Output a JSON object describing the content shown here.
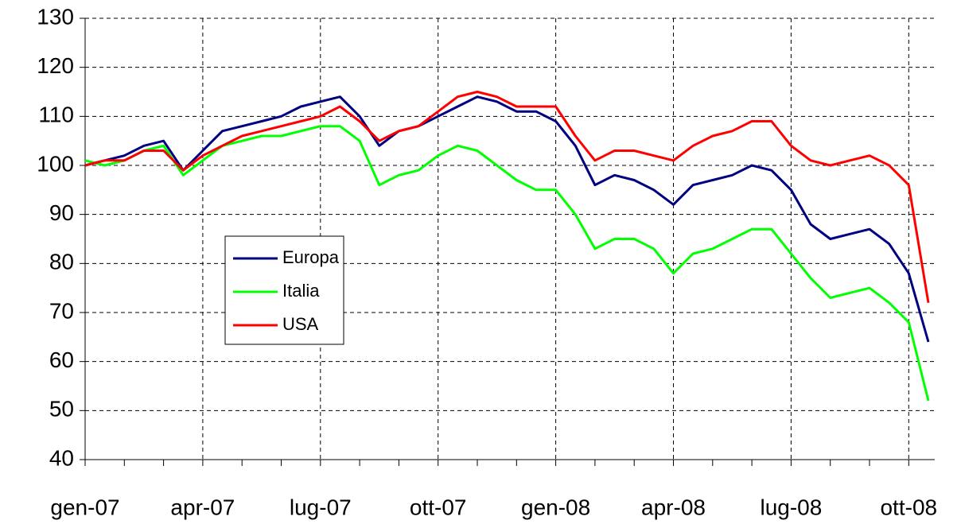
{
  "chart_data": {
    "type": "line",
    "categories": [
      "gen-07",
      null,
      null,
      null,
      null,
      null,
      "apr-07",
      null,
      null,
      null,
      null,
      null,
      "lug-07",
      null,
      null,
      null,
      null,
      null,
      "ott-07",
      null,
      null,
      null,
      null,
      null,
      "gen-08",
      null,
      null,
      null,
      null,
      null,
      "apr-08",
      null,
      null,
      null,
      null,
      null,
      "lug-08",
      null,
      null,
      null,
      null,
      null,
      "ott-08",
      null
    ],
    "series": [
      {
        "name": "Europa",
        "color": "#000080",
        "values": [
          100,
          101,
          102,
          104,
          105,
          99,
          103,
          107,
          108,
          109,
          110,
          112,
          113,
          114,
          110,
          104,
          107,
          108,
          110,
          112,
          114,
          113,
          111,
          111,
          109,
          104,
          96,
          98,
          97,
          95,
          92,
          96,
          97,
          98,
          100,
          99,
          95,
          88,
          85,
          86,
          87,
          84,
          78,
          64
        ]
      },
      {
        "name": "Italia",
        "color": "#00ff00",
        "values": [
          101,
          100,
          101,
          103,
          104,
          98,
          101,
          104,
          105,
          106,
          106,
          107,
          108,
          108,
          105,
          96,
          98,
          99,
          102,
          104,
          103,
          100,
          97,
          95,
          95,
          90,
          83,
          85,
          85,
          83,
          78,
          82,
          83,
          85,
          87,
          87,
          82,
          77,
          73,
          74,
          75,
          72,
          68,
          52
        ]
      },
      {
        "name": "USA",
        "color": "#ff0000",
        "values": [
          100,
          101,
          101,
          103,
          103,
          99,
          102,
          104,
          106,
          107,
          108,
          109,
          110,
          112,
          109,
          105,
          107,
          108,
          111,
          114,
          115,
          114,
          112,
          112,
          112,
          106,
          101,
          103,
          103,
          102,
          101,
          104,
          106,
          107,
          109,
          109,
          104,
          101,
          100,
          101,
          102,
          100,
          96,
          72
        ]
      }
    ],
    "ylim": [
      40,
      130
    ],
    "yticks": [
      40,
      50,
      60,
      70,
      80,
      90,
      100,
      110,
      120,
      130
    ],
    "grid": true
  }
}
